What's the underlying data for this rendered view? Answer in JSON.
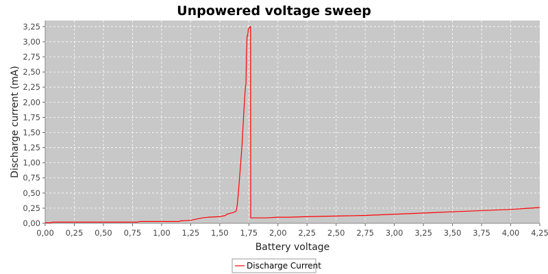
{
  "chart_data": {
    "type": "line",
    "title": "Unpowered voltage sweep",
    "xlabel": "Battery voltage",
    "ylabel": "Discharge current (mA)",
    "xlim": [
      0,
      4.25
    ],
    "ylim": [
      0,
      3.35
    ],
    "x_ticks": [
      "0,00",
      "0,25",
      "0,50",
      "0,75",
      "1,00",
      "1,25",
      "1,50",
      "1,75",
      "2,00",
      "2,25",
      "2,50",
      "2,75",
      "3,00",
      "3,25",
      "3,50",
      "3,75",
      "4,00",
      "4,25"
    ],
    "y_ticks": [
      "0,00",
      "0,25",
      "0,50",
      "0,75",
      "1,00",
      "1,25",
      "1,50",
      "1,75",
      "2,00",
      "2,25",
      "2,50",
      "2,75",
      "3,00",
      "3,25"
    ],
    "grid": true,
    "legend_position": "bottom-center",
    "series": [
      {
        "name": "Discharge Current",
        "color": "#ff0000",
        "x": [
          0.0,
          0.05,
          0.06,
          0.5,
          0.8,
          0.81,
          1.1,
          1.15,
          1.16,
          1.25,
          1.3,
          1.35,
          1.4,
          1.5,
          1.55,
          1.56,
          1.6,
          1.62,
          1.64,
          1.65,
          1.66,
          1.67,
          1.68,
          1.69,
          1.7,
          1.71,
          1.72,
          1.725,
          1.73,
          1.735,
          1.74,
          1.745,
          1.75,
          1.755,
          1.76,
          1.765,
          1.766,
          1.8,
          1.9,
          2.0,
          2.1,
          2.25,
          2.5,
          2.75,
          3.0,
          3.25,
          3.5,
          3.75,
          4.0,
          4.25
        ],
        "y": [
          0.01,
          0.01,
          0.02,
          0.02,
          0.02,
          0.03,
          0.03,
          0.03,
          0.04,
          0.05,
          0.07,
          0.09,
          0.1,
          0.11,
          0.13,
          0.15,
          0.17,
          0.18,
          0.2,
          0.3,
          0.5,
          0.75,
          1.0,
          1.25,
          1.6,
          1.95,
          2.25,
          2.3,
          2.85,
          3.1,
          3.1,
          3.2,
          3.22,
          3.23,
          3.25,
          3.25,
          0.09,
          0.09,
          0.09,
          0.1,
          0.1,
          0.11,
          0.12,
          0.13,
          0.15,
          0.17,
          0.19,
          0.21,
          0.23,
          0.26
        ]
      }
    ]
  }
}
